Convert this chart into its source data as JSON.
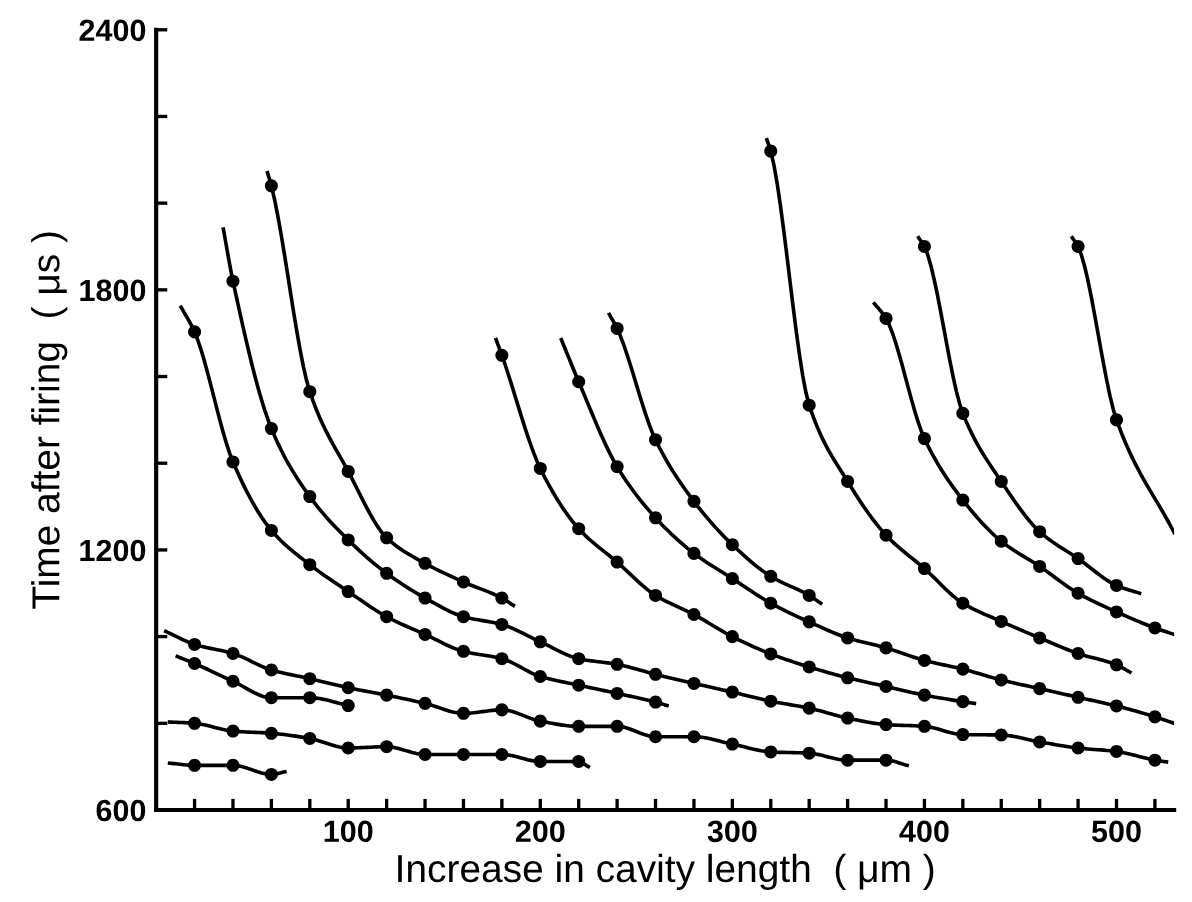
{
  "chart_data": {
    "type": "line",
    "xlabel": "Increase in cavity length  ( μm )",
    "ylabel": "Time after firing  ( μs )",
    "xlim": [
      0,
      530
    ],
    "ylim": [
      600,
      2400
    ],
    "xticks": [
      {
        "value": 20,
        "label": null
      },
      {
        "value": 40,
        "label": null
      },
      {
        "value": 60,
        "label": null
      },
      {
        "value": 80,
        "label": null
      },
      100,
      {
        "value": 120,
        "label": null
      },
      {
        "value": 140,
        "label": null
      },
      {
        "value": 160,
        "label": null
      },
      {
        "value": 180,
        "label": null
      },
      200,
      {
        "value": 220,
        "label": null
      },
      {
        "value": 240,
        "label": null
      },
      {
        "value": 260,
        "label": null
      },
      {
        "value": 280,
        "label": null
      },
      300,
      {
        "value": 320,
        "label": null
      },
      {
        "value": 340,
        "label": null
      },
      {
        "value": 360,
        "label": null
      },
      {
        "value": 380,
        "label": null
      },
      400,
      {
        "value": 420,
        "label": null
      },
      {
        "value": 440,
        "label": null
      },
      {
        "value": 460,
        "label": null
      },
      {
        "value": 480,
        "label": null
      },
      500,
      {
        "value": 520,
        "label": null
      }
    ],
    "yticks": [
      600,
      {
        "value": 800,
        "label": null
      },
      {
        "value": 1000,
        "label": null
      },
      1200,
      {
        "value": 1400,
        "label": null
      },
      {
        "value": 1600,
        "label": null
      },
      1800,
      {
        "value": 2000,
        "label": null
      },
      {
        "value": 2200,
        "label": null
      },
      2400
    ],
    "grid": false,
    "legend": false,
    "line_style": "solid",
    "series": [
      {
        "color": "#000000",
        "x": [
          13,
          20,
          40,
          60,
          80,
          100,
          120,
          140,
          160,
          180,
          200,
          220,
          240,
          260,
          266
        ],
        "values": [
          1760,
          1703,
          1403,
          1245,
          1166,
          1104,
          1046,
          1005,
          966,
          949,
          908,
          888,
          869,
          849,
          841
        ]
      },
      {
        "color": "#000000",
        "x": [
          35,
          40,
          60,
          80,
          100,
          120,
          140,
          160,
          180,
          200,
          220,
          240,
          260,
          280,
          300,
          320,
          340,
          360,
          380,
          400,
          420,
          440,
          460,
          480,
          500,
          520,
          526
        ],
        "values": [
          1940,
          1820,
          1480,
          1323,
          1223,
          1146,
          1089,
          1046,
          1028,
          988,
          949,
          936,
          913,
          892,
          872,
          851,
          835,
          812,
          797,
          793,
          774,
          773,
          757,
          743,
          735,
          715,
          711
        ]
      },
      {
        "color": "#000000",
        "x": [
          58,
          60,
          80,
          100,
          120,
          140,
          160,
          180,
          186
        ],
        "values": [
          2070,
          2040,
          1565,
          1381,
          1228,
          1169,
          1126,
          1089,
          1072
        ]
      },
      {
        "color": "#000000",
        "x": [
          177,
          180,
          200,
          220,
          240,
          260,
          280,
          300,
          320,
          340,
          360,
          380,
          400,
          420,
          426
        ],
        "values": [
          1685,
          1649,
          1388,
          1249,
          1172,
          1095,
          1051,
          1000,
          960,
          930,
          905,
          885,
          865,
          850,
          846
        ]
      },
      {
        "color": "#000000",
        "x": [
          211,
          220,
          240,
          260,
          280,
          300,
          320,
          340,
          360,
          380,
          400,
          420,
          440,
          460,
          480,
          500,
          520,
          530
        ],
        "values": [
          1685,
          1588,
          1392,
          1274,
          1192,
          1134,
          1077,
          1034,
          997,
          974,
          945,
          925,
          900,
          880,
          860,
          840,
          815,
          800
        ]
      },
      {
        "color": "#000000",
        "x": [
          236,
          240,
          260,
          280,
          300,
          320,
          340,
          346
        ],
        "values": [
          1743,
          1711,
          1454,
          1312,
          1212,
          1139,
          1095,
          1077
        ]
      },
      {
        "color": "#000000",
        "x": [
          318,
          320,
          340,
          360,
          380,
          400,
          420,
          440,
          460,
          480,
          500,
          507
        ],
        "values": [
          2146,
          2120,
          1534,
          1358,
          1234,
          1157,
          1077,
          1035,
          997,
          961,
          935,
          918
        ]
      },
      {
        "color": "#000000",
        "x": [
          374,
          380,
          400,
          420,
          440,
          460,
          480,
          500,
          520,
          530
        ],
        "values": [
          1768,
          1734,
          1457,
          1315,
          1220,
          1162,
          1100,
          1057,
          1020,
          1005
        ]
      },
      {
        "color": "#000000",
        "x": [
          397,
          400,
          420,
          440,
          460,
          480,
          500,
          512
        ],
        "values": [
          1920,
          1900,
          1515,
          1358,
          1242,
          1180,
          1118,
          1100
        ]
      },
      {
        "color": "#000000",
        "x": [
          477,
          480,
          500,
          530
        ],
        "values": [
          1920,
          1900,
          1500,
          1240
        ]
      },
      {
        "color": "#000000",
        "x": [
          5,
          20,
          40,
          60,
          80,
          100,
          120,
          140,
          160,
          180,
          200,
          220,
          240,
          260,
          280,
          300,
          320,
          340,
          360,
          380,
          391
        ],
        "values": [
          1012,
          982,
          961,
          923,
          903,
          882,
          865,
          846,
          823,
          831,
          805,
          793,
          793,
          769,
          769,
          752,
          734,
          731,
          715,
          715,
          703
        ]
      },
      {
        "color": "#000000",
        "x": [
          11,
          20,
          40,
          60,
          80,
          100,
          102
        ],
        "values": [
          954,
          938,
          897,
          859,
          859,
          841,
          839
        ]
      },
      {
        "color": "#000000",
        "x": [
          7,
          20,
          40,
          60,
          80,
          100,
          120,
          140,
          160,
          180,
          200,
          220,
          225
        ],
        "values": [
          803,
          800,
          782,
          777,
          765,
          743,
          746,
          728,
          728,
          728,
          712,
          712,
          700
        ]
      },
      {
        "color": "#000000",
        "x": [
          7,
          20,
          40,
          60,
          67
        ],
        "values": [
          708,
          703,
          703,
          682,
          688
        ]
      },
      {
        "type": "scatter",
        "color": "#000000",
        "marker": "circle",
        "x": [
          20,
          40,
          60,
          80,
          100,
          120,
          140,
          160,
          180,
          200,
          220,
          240,
          260,
          40,
          60,
          80,
          100,
          120,
          140,
          160,
          180,
          200,
          220,
          240,
          260,
          280,
          300,
          320,
          340,
          360,
          380,
          400,
          420,
          440,
          460,
          480,
          500,
          520,
          60,
          80,
          100,
          120,
          140,
          160,
          180,
          180,
          200,
          220,
          240,
          260,
          280,
          300,
          320,
          340,
          360,
          380,
          400,
          420,
          220,
          240,
          260,
          280,
          300,
          320,
          340,
          360,
          380,
          400,
          420,
          440,
          460,
          480,
          500,
          520,
          240,
          260,
          280,
          300,
          320,
          340,
          320,
          340,
          360,
          380,
          400,
          420,
          440,
          460,
          480,
          500,
          380,
          400,
          420,
          440,
          460,
          480,
          500,
          520,
          400,
          420,
          440,
          460,
          480,
          500,
          480,
          500,
          20,
          40,
          60,
          80,
          100,
          120,
          140,
          160,
          180,
          200,
          220,
          240,
          260,
          280,
          300,
          320,
          340,
          360,
          380,
          20,
          40,
          60,
          80,
          100,
          20,
          40,
          60,
          80,
          100,
          120,
          140,
          160,
          180,
          200,
          220,
          20,
          40,
          60
        ],
        "values": [
          1703,
          1403,
          1245,
          1166,
          1104,
          1046,
          1005,
          966,
          949,
          908,
          888,
          869,
          849,
          1820,
          1480,
          1323,
          1223,
          1146,
          1089,
          1046,
          1028,
          988,
          949,
          936,
          913,
          892,
          872,
          851,
          835,
          812,
          797,
          793,
          774,
          773,
          757,
          743,
          735,
          715,
          2040,
          1565,
          1381,
          1228,
          1169,
          1126,
          1089,
          1649,
          1388,
          1249,
          1172,
          1095,
          1051,
          1000,
          960,
          930,
          905,
          885,
          865,
          850,
          1588,
          1392,
          1274,
          1192,
          1134,
          1077,
          1034,
          997,
          974,
          945,
          925,
          900,
          880,
          860,
          840,
          815,
          1711,
          1454,
          1312,
          1212,
          1139,
          1095,
          2120,
          1534,
          1358,
          1234,
          1157,
          1077,
          1035,
          997,
          961,
          935,
          1734,
          1457,
          1315,
          1220,
          1162,
          1100,
          1057,
          1020,
          1900,
          1515,
          1358,
          1242,
          1180,
          1118,
          1900,
          1500,
          982,
          961,
          923,
          903,
          882,
          865,
          846,
          823,
          831,
          805,
          793,
          793,
          769,
          769,
          752,
          734,
          731,
          715,
          715,
          938,
          897,
          859,
          859,
          841,
          800,
          782,
          777,
          765,
          743,
          746,
          728,
          728,
          728,
          712,
          712,
          703,
          703,
          682
        ]
      }
    ]
  }
}
